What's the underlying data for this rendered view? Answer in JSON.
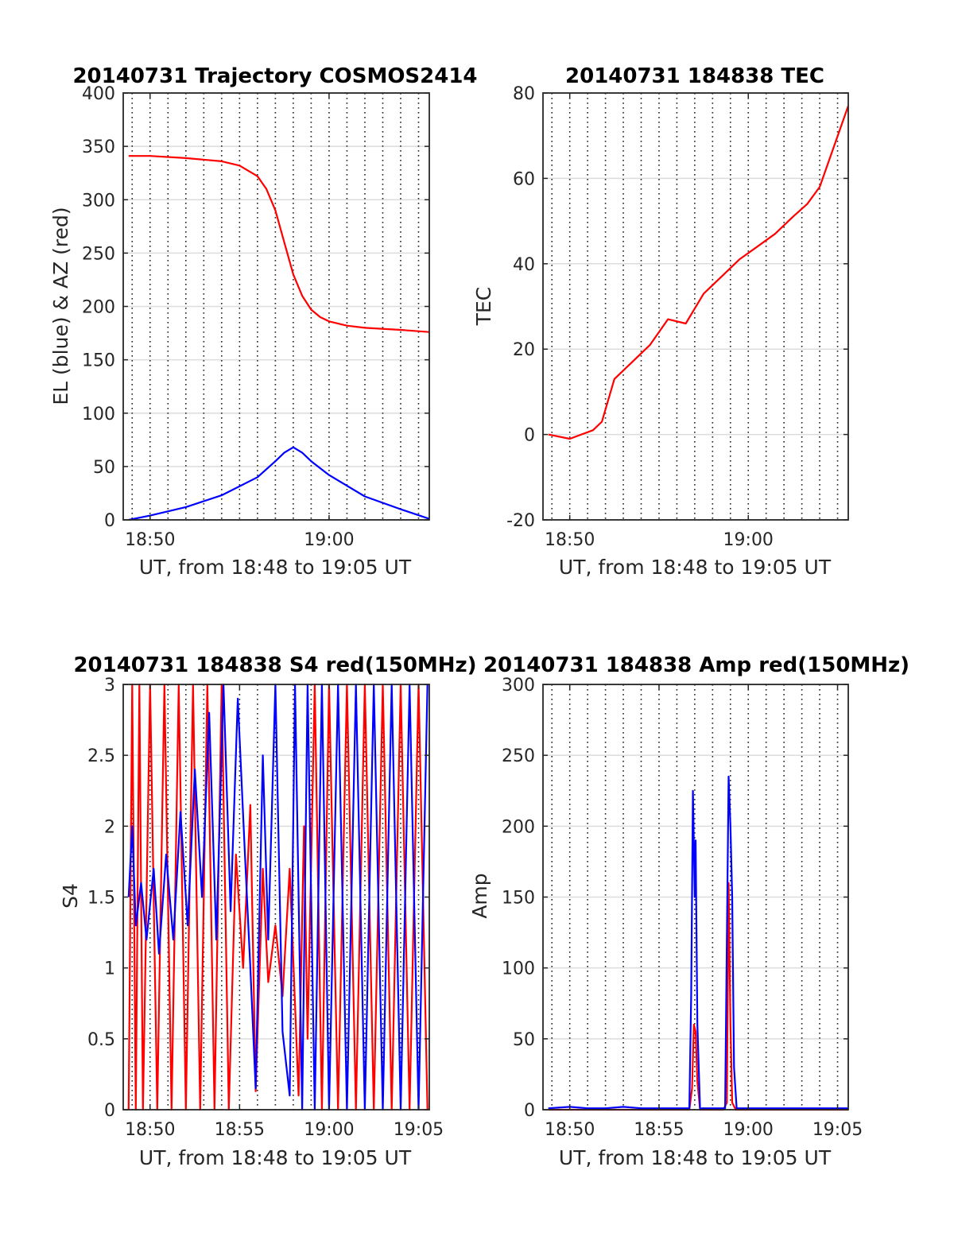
{
  "chart_data": [
    {
      "type": "line",
      "title": "20140731 Trajectory COSMOS2414",
      "xlabel": "UT, from 18:48 to 19:05 UT",
      "ylabel": "EL (blue) & AZ (red)",
      "x_ticks": [
        "18:50",
        "19:00"
      ],
      "xlim_minutes": [
        -1.5,
        15.6
      ],
      "ylim": [
        0,
        400
      ],
      "y_ticks": [
        0,
        50,
        100,
        150,
        200,
        250,
        300,
        350,
        400
      ],
      "grid": "horizontal solid, vertical dotted",
      "series": [
        {
          "color": "#0000ff",
          "x": [
            -1.2,
            0,
            2,
            4,
            6,
            7,
            7.5,
            8,
            8.5,
            9,
            10,
            12,
            14,
            15.6
          ],
          "values": [
            0,
            4,
            12,
            23,
            40,
            55,
            63,
            68,
            63,
            55,
            42,
            22,
            10,
            1
          ]
        },
        {
          "color": "#ff0000",
          "x": [
            -1.2,
            0,
            2,
            4,
            5,
            6,
            6.5,
            7,
            7.5,
            8,
            8.5,
            9,
            9.5,
            10,
            11,
            12,
            14,
            15.6
          ],
          "values": [
            341,
            341,
            339,
            336,
            332,
            322,
            310,
            290,
            260,
            230,
            210,
            197,
            190,
            186,
            182,
            180,
            178,
            176
          ]
        }
      ]
    },
    {
      "type": "line",
      "title": "20140731 184838 TEC",
      "xlabel": "UT, from 18:48 to 19:05 UT",
      "ylabel": "TEC",
      "x_ticks": [
        "18:50",
        "19:00"
      ],
      "xlim_minutes": [
        -1.5,
        15.6
      ],
      "ylim": [
        -20,
        80
      ],
      "y_ticks": [
        -20,
        0,
        20,
        40,
        60,
        80
      ],
      "grid": "horizontal solid, vertical dotted",
      "series": [
        {
          "color": "#ff0000",
          "x": [
            -1.2,
            0,
            1.3,
            1.8,
            2.5,
            3.5,
            4.5,
            5.5,
            6.5,
            7.5,
            8.5,
            9.5,
            10.5,
            11.5,
            12.5,
            13.3,
            14,
            15.6
          ],
          "values": [
            0,
            -1,
            1,
            3,
            13,
            17,
            21,
            27,
            26,
            33,
            37,
            41,
            44,
            47,
            51,
            54,
            58,
            77
          ]
        }
      ]
    },
    {
      "type": "line",
      "title": "20140731 184838 S4 red(150MHz)",
      "xlabel": "UT, from 18:48 to 19:05 UT",
      "ylabel": "S4",
      "x_ticks": [
        "18:50",
        "18:55",
        "19:00",
        "19:05"
      ],
      "xlim_minutes": [
        -1.5,
        15.6
      ],
      "ylim": [
        0,
        3
      ],
      "y_ticks": [
        0,
        0.5,
        1,
        1.5,
        2,
        2.5,
        3
      ],
      "grid": "horizontal solid, vertical dotted",
      "series": [
        {
          "color": "#ff0000",
          "x": [
            -1.2,
            -1.0,
            -0.8,
            -0.6,
            -0.4,
            0,
            0.4,
            0.8,
            1.2,
            1.6,
            2.0,
            2.4,
            2.8,
            3.2,
            3.6,
            4.0,
            4.4,
            4.8,
            5.2,
            5.6,
            5.9,
            6.3,
            6.6,
            7.0,
            7.4,
            7.8,
            8.3,
            8.6,
            8.8,
            9.2,
            9.6,
            10.0,
            10.5,
            11,
            11.5,
            12,
            12.5,
            13,
            13.5,
            14,
            14.5,
            15,
            15.5
          ],
          "values": [
            0,
            3,
            0,
            3,
            0,
            3,
            0,
            3,
            0,
            3,
            0,
            3,
            0,
            3,
            0,
            3,
            0,
            1.8,
            1.0,
            2.15,
            0.13,
            1.7,
            0.9,
            1.3,
            0.8,
            1.7,
            0.1,
            2.0,
            0.5,
            3,
            0,
            3,
            0,
            3,
            0,
            3,
            0,
            3,
            0,
            3,
            0,
            3,
            0
          ]
        },
        {
          "color": "#0000ff",
          "x": [
            -1.2,
            -1.0,
            -0.8,
            -0.5,
            -0.2,
            0.2,
            0.5,
            0.9,
            1.3,
            1.7,
            2.1,
            2.5,
            2.9,
            3.3,
            3.7,
            4.1,
            4.5,
            4.9,
            5.3,
            5.6,
            5.9,
            6.3,
            6.6,
            7.0,
            7.4,
            7.8,
            8.1,
            8.5,
            8.8,
            9.2,
            9.6,
            10.0,
            10.5,
            11,
            11.5,
            12,
            12.5,
            13,
            13.5,
            14,
            14.5,
            15,
            15.5
          ],
          "values": [
            1.5,
            2.0,
            1.3,
            1.6,
            1.2,
            1.7,
            1.1,
            1.8,
            1.2,
            2.1,
            1.3,
            2.4,
            1.5,
            2.8,
            1.2,
            3,
            1.4,
            2.9,
            1.8,
            1.0,
            0.15,
            2.5,
            1.2,
            3,
            0.55,
            0.1,
            3,
            0,
            3,
            0,
            3,
            0,
            3,
            0,
            3,
            0,
            3,
            0,
            3,
            0,
            3,
            0,
            3
          ]
        }
      ]
    },
    {
      "type": "line",
      "title": "20140731 184838 Amp red(150MHz)",
      "xlabel": "UT, from 18:48 to 19:05 UT",
      "ylabel": "Amp",
      "x_ticks": [
        "18:50",
        "18:55",
        "19:00",
        "19:05"
      ],
      "xlim_minutes": [
        -1.5,
        15.6
      ],
      "ylim": [
        0,
        300
      ],
      "y_ticks": [
        0,
        50,
        100,
        150,
        200,
        250,
        300
      ],
      "grid": "horizontal solid, vertical dotted",
      "series": [
        {
          "color": "#ff0000",
          "x": [
            -1.2,
            6.7,
            6.85,
            6.95,
            7.05,
            7.15,
            7.3,
            8.6,
            8.8,
            8.9,
            9.0,
            9.1,
            9.3,
            15.6
          ],
          "values": [
            0,
            0,
            15,
            60,
            55,
            20,
            0,
            0,
            5,
            160,
            60,
            5,
            0,
            0
          ]
        },
        {
          "color": "#0000ff",
          "x": [
            -1.2,
            0,
            1,
            2,
            3,
            4,
            5,
            6,
            6.7,
            6.8,
            6.9,
            7.0,
            7.05,
            7.15,
            7.3,
            7.4,
            8.7,
            8.8,
            8.9,
            9.0,
            9.1,
            9.2,
            9.35,
            10,
            11,
            12,
            13,
            14,
            15.6
          ],
          "values": [
            1,
            2,
            1,
            1,
            2,
            1,
            1,
            1,
            1,
            80,
            225,
            150,
            190,
            60,
            0,
            1,
            1,
            120,
            235,
            200,
            150,
            30,
            1,
            1,
            1,
            1,
            1,
            1,
            1
          ]
        }
      ]
    }
  ]
}
